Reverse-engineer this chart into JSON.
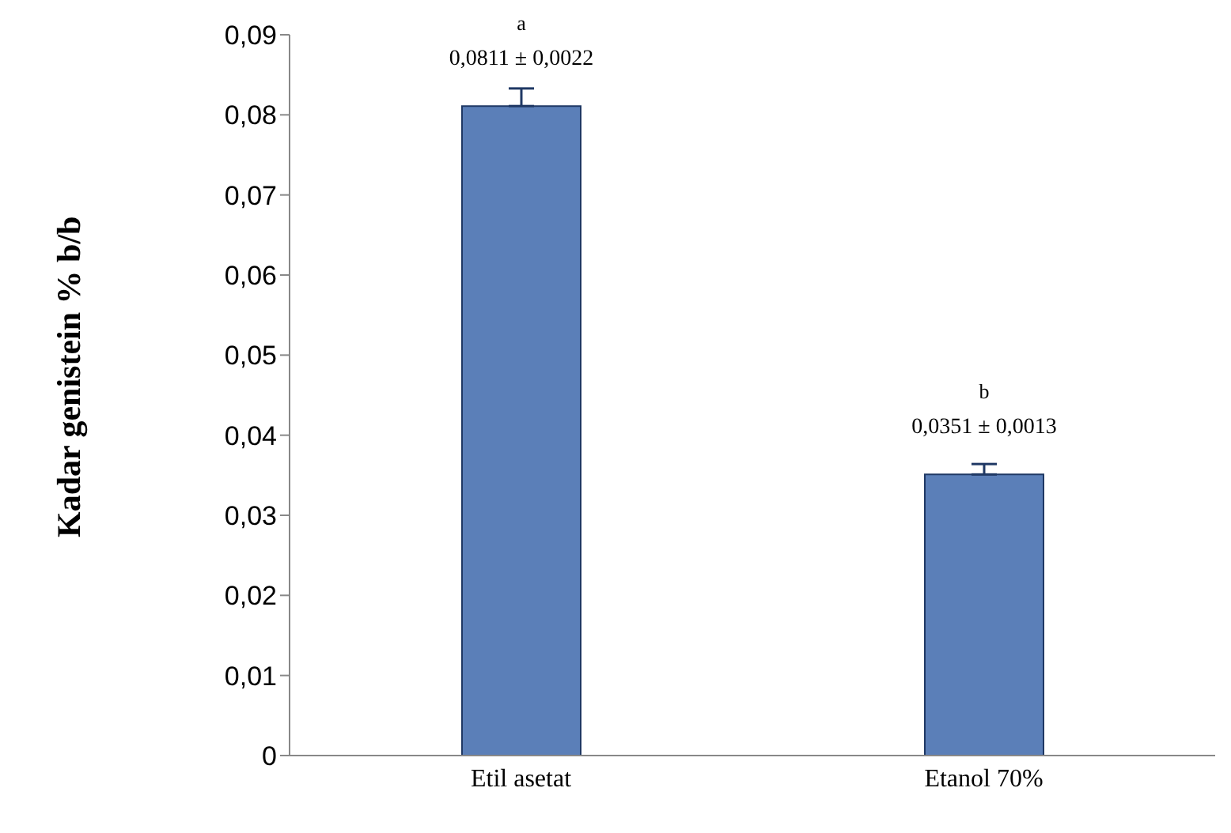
{
  "chart_data": {
    "type": "bar",
    "ylabel": "Kadar genistein % b/b",
    "categories": [
      "Etil asetat",
      "Etanol 70%"
    ],
    "values": [
      0.0811,
      0.0351
    ],
    "color": "#5b7fb8",
    "errors": [
      [
        0.0811,
        0.0833
      ],
      [
        0.0351,
        0.0364
      ]
    ],
    "value_labels": [
      "0,0811 ± 0,0022",
      "0,0351 ± 0,0013"
    ],
    "annotations": [
      "a",
      "b"
    ],
    "ylim": [
      0,
      0.09
    ],
    "yticks": [
      {
        "value": 0,
        "label": "0"
      },
      {
        "value": 0.01,
        "label": "0,01"
      },
      {
        "value": 0.02,
        "label": "0,02"
      },
      {
        "value": 0.03,
        "label": "0,03"
      },
      {
        "value": 0.04,
        "label": "0,04"
      },
      {
        "value": 0.05,
        "label": "0,05"
      },
      {
        "value": 0.06,
        "label": "0,06"
      },
      {
        "value": 0.07,
        "label": "0,07"
      },
      {
        "value": 0.08,
        "label": "0,08"
      },
      {
        "value": 0.09,
        "label": "0,09"
      }
    ],
    "grid": false,
    "legend": false
  }
}
